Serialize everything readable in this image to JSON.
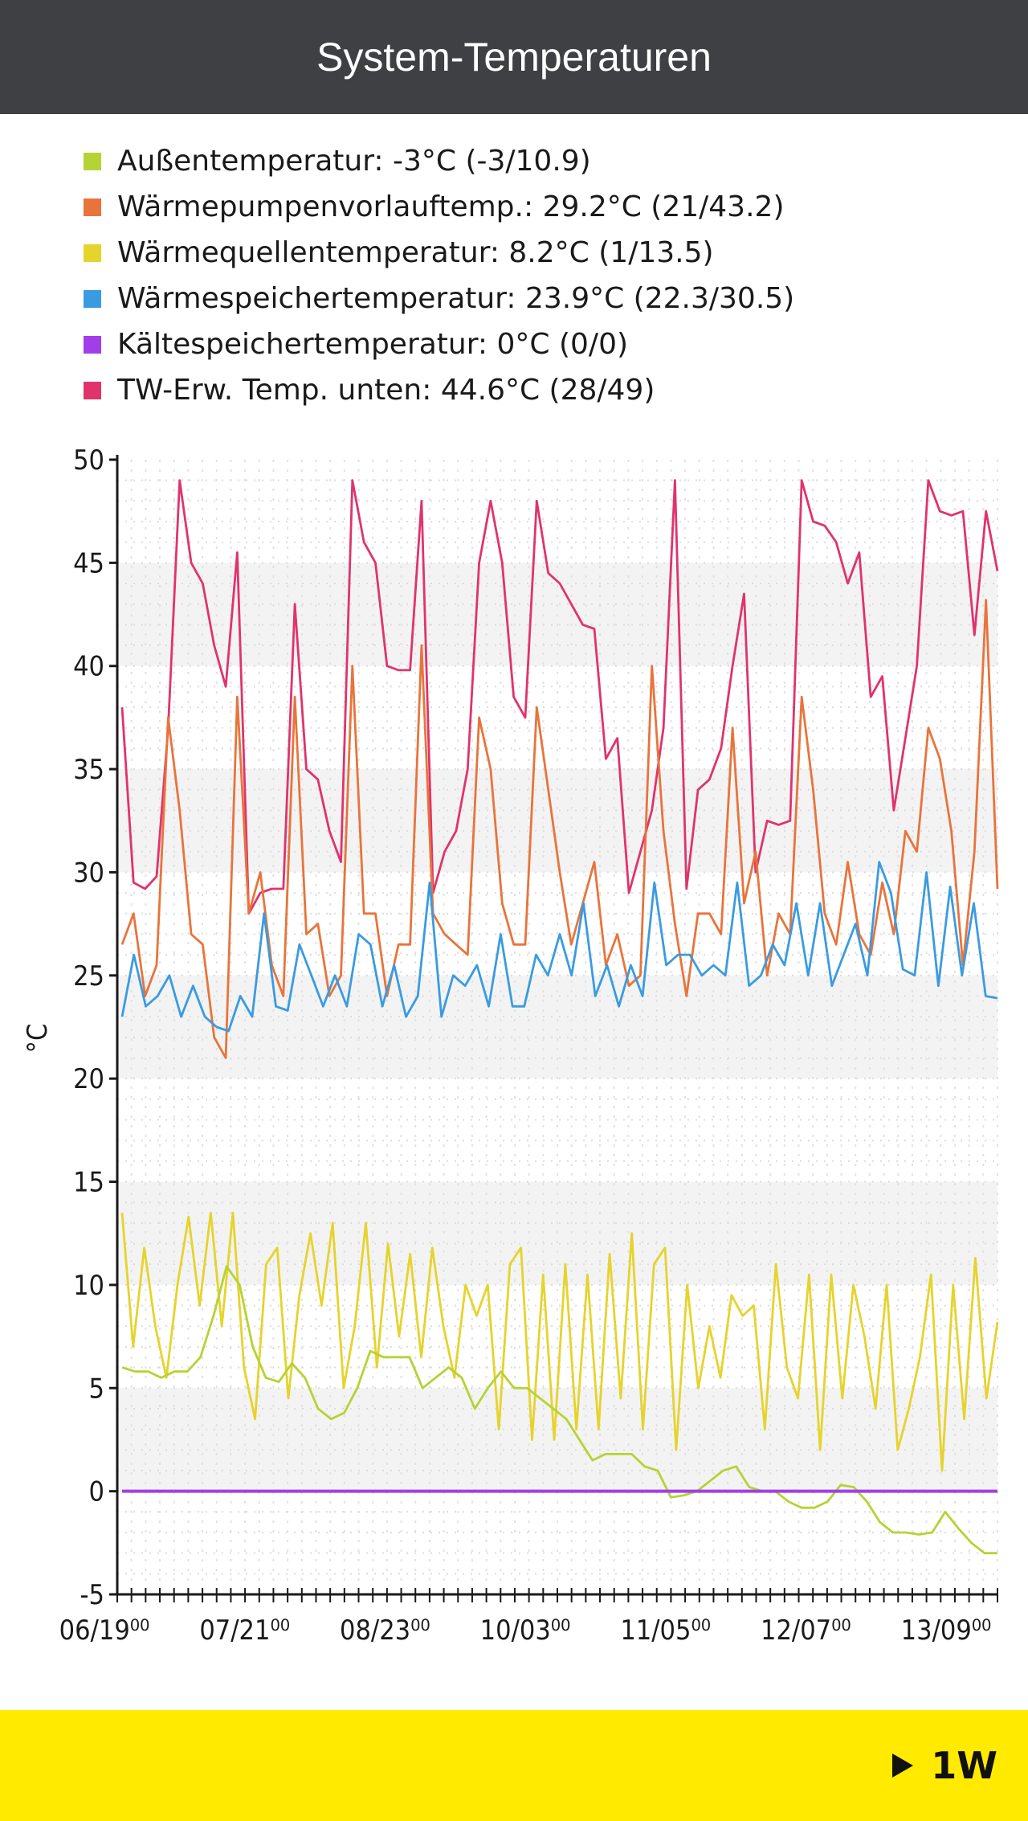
{
  "header": {
    "title": "System-Temperaturen"
  },
  "legend": [
    {
      "label": "Außentemperatur:",
      "value": "-3°C (-3/10.9)",
      "color": "#b5d334"
    },
    {
      "label": "Wärmepumpenvorlauftemp.:",
      "value": "29.2°C (21/43.2)",
      "color": "#e8743b"
    },
    {
      "label": "Wärmequellentemperatur:",
      "value": "8.2°C (1/13.5)",
      "color": "#e6d32c"
    },
    {
      "label": "Wärmespeichertemperatur:",
      "value": "23.9°C (22.3/30.5)",
      "color": "#3a9be0"
    },
    {
      "label": "Kältespeichertemperatur:",
      "value": "0°C (0/0)",
      "color": "#a23ee8"
    },
    {
      "label": "TW-Erw. Temp. unten:",
      "value": "44.6°C (28/49)",
      "color": "#e0336c"
    }
  ],
  "chart_data": {
    "type": "line",
    "ylabel": "°C",
    "ylim": [
      -5,
      50
    ],
    "yticks": [
      -5,
      0,
      5,
      10,
      15,
      20,
      25,
      30,
      35,
      40,
      45,
      50
    ],
    "xticklabels": [
      "06/19⁰⁰",
      "07/21⁰⁰",
      "08/23⁰⁰",
      "10/03⁰⁰",
      "11/05⁰⁰",
      "12/07⁰⁰",
      "13/09⁰⁰"
    ],
    "grid": true,
    "n_points": 125,
    "series": [
      {
        "name": "TW-Erw. Temp. unten",
        "color": "#e0336c",
        "values": [
          38,
          29.5,
          29.2,
          29.8,
          37,
          49,
          45,
          44,
          41,
          39,
          45.5,
          28,
          29,
          29.2,
          29.2,
          43,
          35,
          34.5,
          32,
          30.5,
          49,
          46,
          45,
          40,
          39.8,
          39.8,
          48,
          29,
          31,
          32,
          35,
          45,
          48,
          45,
          38.5,
          37.5,
          48,
          44.5,
          44,
          43,
          42,
          41.8,
          35.5,
          36.5,
          29,
          31,
          33,
          37,
          49,
          29.2,
          34,
          34.5,
          36,
          40,
          43.5,
          30,
          32.5,
          32.3,
          32.5,
          49,
          47,
          46.8,
          46,
          44,
          45.5,
          38.5,
          39.5,
          33,
          36.5,
          40,
          49,
          47.5,
          47.3,
          47.5,
          41.5,
          47.5,
          44.6
        ]
      },
      {
        "name": "Wärmepumpenvorlauftemp.",
        "color": "#e8743b",
        "values": [
          26.5,
          28,
          24,
          25.5,
          37.5,
          33,
          27,
          26.5,
          22,
          21,
          38.5,
          28,
          30,
          25.5,
          24,
          38.5,
          27,
          27.5,
          24,
          25,
          40,
          28,
          28,
          24,
          26.5,
          26.5,
          41,
          28,
          27,
          26.5,
          26,
          37.5,
          35,
          28.5,
          26.5,
          26.5,
          38,
          34,
          30,
          26.5,
          28.5,
          30.5,
          25.5,
          27,
          24.5,
          25,
          40,
          32,
          27.5,
          24,
          28,
          28,
          27,
          37,
          28.5,
          31,
          25,
          28,
          27,
          38.5,
          34,
          28,
          26.5,
          30.5,
          27,
          26,
          29.5,
          27,
          32,
          31,
          37,
          35.5,
          32,
          25.5,
          31,
          43.2,
          29.2
        ]
      },
      {
        "name": "Wärmespeichertemperatur",
        "color": "#3a9be0",
        "values": [
          23,
          26,
          23.5,
          24,
          25,
          23,
          24.5,
          23,
          22.5,
          22.3,
          24,
          23,
          28,
          23.5,
          23.3,
          26.5,
          25,
          23.5,
          25,
          23.5,
          27,
          26.5,
          23.5,
          25.5,
          23,
          24,
          29.5,
          23,
          25,
          24.5,
          25.5,
          23.5,
          27,
          23.5,
          23.5,
          26,
          25,
          27,
          25,
          28.5,
          24,
          25.5,
          23.5,
          25.5,
          24,
          29.5,
          25.5,
          26,
          26,
          25,
          25.5,
          25,
          29.5,
          24.5,
          25,
          26.5,
          25.5,
          28.5,
          25,
          28.5,
          24.5,
          26,
          27.5,
          25,
          30.5,
          29,
          25.3,
          25,
          30,
          24.5,
          29.3,
          25,
          28.5,
          24,
          23.9
        ]
      },
      {
        "name": "Wärmequellentemperatur",
        "color": "#e6d32c",
        "values": [
          13.5,
          7,
          11.8,
          8,
          5.5,
          10,
          13.3,
          9,
          13.5,
          8,
          13.5,
          6,
          3.5,
          11,
          11.8,
          4.5,
          9.5,
          12.5,
          9,
          13,
          5,
          8,
          13,
          6,
          12,
          7.5,
          11.5,
          6.5,
          11.8,
          8,
          5.5,
          10,
          8.5,
          10,
          3,
          11,
          11.8,
          2.5,
          10.5,
          2.5,
          11,
          3,
          10.5,
          3,
          11.5,
          4.5,
          12.5,
          3,
          11,
          11.8,
          2,
          10,
          5,
          8,
          5.5,
          9.5,
          8.5,
          9,
          3,
          11,
          6,
          4.5,
          10.5,
          2,
          10.5,
          4.5,
          10,
          7.5,
          4,
          10,
          2,
          4,
          6.5,
          10.5,
          1,
          10,
          3.5,
          11.3,
          4.5,
          8.2
        ]
      },
      {
        "name": "Außentemperatur",
        "color": "#b5d334",
        "values": [
          6,
          5.8,
          5.8,
          5.5,
          5.8,
          5.8,
          6.5,
          8.5,
          10.9,
          10,
          7,
          5.5,
          5.3,
          6.2,
          5.5,
          4,
          3.5,
          3.8,
          5,
          6.8,
          6.5,
          6.5,
          6.5,
          5,
          5.5,
          6,
          5.5,
          4,
          5,
          5.8,
          5,
          5,
          4.5,
          4,
          3.5,
          2.5,
          1.5,
          1.8,
          1.8,
          1.8,
          1.2,
          1,
          -0.3,
          -0.2,
          0,
          0.5,
          1,
          1.2,
          0.2,
          0,
          0,
          -0.5,
          -0.8,
          -0.8,
          -0.5,
          0.3,
          0.2,
          -0.5,
          -1.5,
          -2,
          -2,
          -2.1,
          -2,
          -1,
          -1.8,
          -2.5,
          -3,
          -3
        ]
      },
      {
        "name": "Kältespeichertemperatur",
        "color": "#a23ee8",
        "values": [
          0,
          0
        ]
      }
    ]
  },
  "footer": {
    "range_label": "1W",
    "range_icon": "play-icon"
  }
}
